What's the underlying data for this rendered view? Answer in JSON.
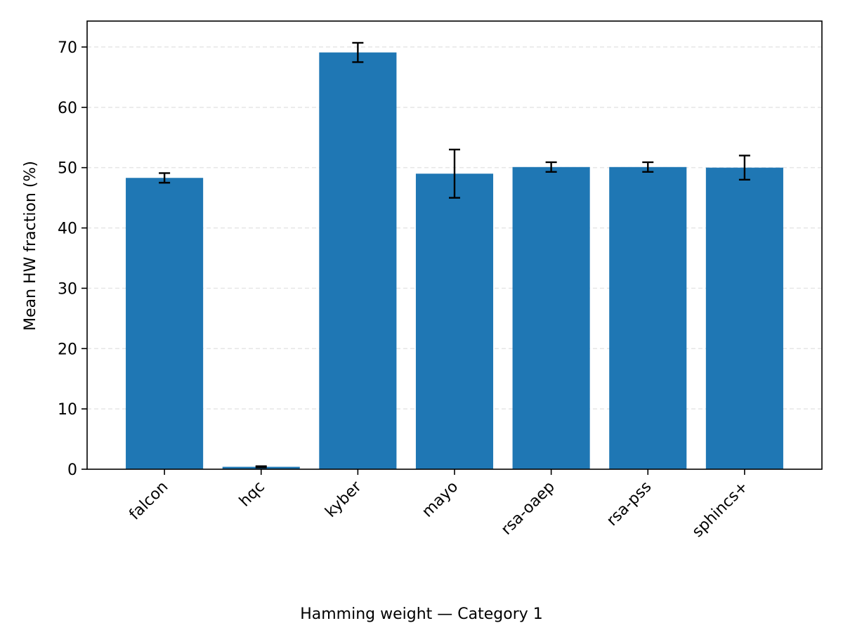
{
  "caption": "Hamming weight — Category 1",
  "chart_data": {
    "type": "bar",
    "title": "",
    "xlabel": "",
    "ylabel": "Mean HW fraction (%)",
    "categories": [
      "falcon",
      "hqc",
      "kyber",
      "mayo",
      "rsa-oaep",
      "rsa-pss",
      "sphincs+"
    ],
    "values": [
      48.3,
      0.4,
      69.1,
      49.0,
      50.1,
      50.1,
      50.0
    ],
    "errors": [
      0.8,
      0.1,
      1.6,
      4.0,
      0.8,
      0.8,
      2.0
    ],
    "ylim": [
      0,
      74.3
    ],
    "yticks": [
      0,
      10,
      20,
      30,
      40,
      50,
      60,
      70
    ],
    "grid": "y-dashed",
    "colors": {
      "bar": "#1f77b4",
      "error": "#000000",
      "grid": "#e6e6e6",
      "axis": "#000000"
    }
  }
}
